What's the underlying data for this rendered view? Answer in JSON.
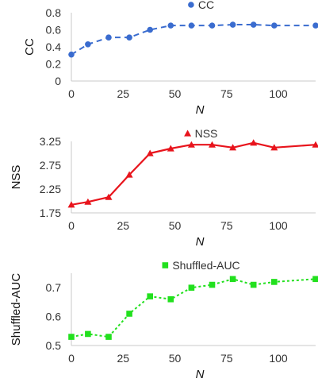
{
  "chart_data": [
    {
      "type": "line",
      "x": [
        0,
        8,
        18,
        28,
        38,
        48,
        58,
        68,
        78,
        88,
        98,
        118
      ],
      "series": [
        {
          "name": "CC",
          "values": [
            0.31,
            0.43,
            0.51,
            0.51,
            0.6,
            0.65,
            0.65,
            0.65,
            0.66,
            0.66,
            0.65,
            0.65
          ]
        }
      ],
      "xlabel": "N",
      "ylabel": "CC",
      "xlim": [
        0,
        118
      ],
      "ylim": [
        0,
        0.8
      ],
      "xticks": [
        0,
        25,
        50,
        75,
        100
      ],
      "yticks": [
        0,
        0.2,
        0.4,
        0.6,
        0.8
      ],
      "ytick_labels": [
        "0",
        "0.2",
        "0.4",
        "0.6",
        "0.8"
      ],
      "grid": false,
      "legend_position": "top",
      "color": "#3a6ccf",
      "line_style": "dashed",
      "marker": "circle"
    },
    {
      "type": "line",
      "x": [
        0,
        8,
        18,
        28,
        38,
        48,
        58,
        68,
        78,
        88,
        98,
        118
      ],
      "series": [
        {
          "name": "NSS",
          "values": [
            1.92,
            1.98,
            2.08,
            2.55,
            3.0,
            3.1,
            3.18,
            3.18,
            3.12,
            3.22,
            3.12,
            3.18
          ]
        }
      ],
      "xlabel": "N",
      "ylabel": "NSS",
      "xlim": [
        0,
        118
      ],
      "ylim": [
        1.75,
        3.25
      ],
      "xticks": [
        0,
        25,
        50,
        75,
        100
      ],
      "yticks": [
        1.75,
        2.25,
        2.75,
        3.25
      ],
      "ytick_labels": [
        "1.75",
        "2.25",
        "2.75",
        "3.25"
      ],
      "grid": false,
      "legend_position": "top",
      "color": "#e8141c",
      "line_style": "solid",
      "marker": "triangle"
    },
    {
      "type": "line",
      "x": [
        0,
        8,
        18,
        28,
        38,
        48,
        58,
        68,
        78,
        88,
        98,
        118
      ],
      "series": [
        {
          "name": "Shuffled-AUC",
          "values": [
            0.53,
            0.54,
            0.53,
            0.61,
            0.67,
            0.66,
            0.7,
            0.71,
            0.73,
            0.71,
            0.72,
            0.73
          ]
        }
      ],
      "xlabel": "N",
      "ylabel": "Shuffled-AUC",
      "xlim": [
        0,
        118
      ],
      "ylim": [
        0.5,
        0.75
      ],
      "xticks": [
        0,
        25,
        50,
        75,
        100
      ],
      "yticks": [
        0.5,
        0.6,
        0.7
      ],
      "ytick_labels": [
        "0.5",
        "0.6",
        "0.7"
      ],
      "grid": false,
      "legend_position": "top",
      "color": "#22e01e",
      "line_style": "dotted",
      "marker": "square"
    }
  ]
}
